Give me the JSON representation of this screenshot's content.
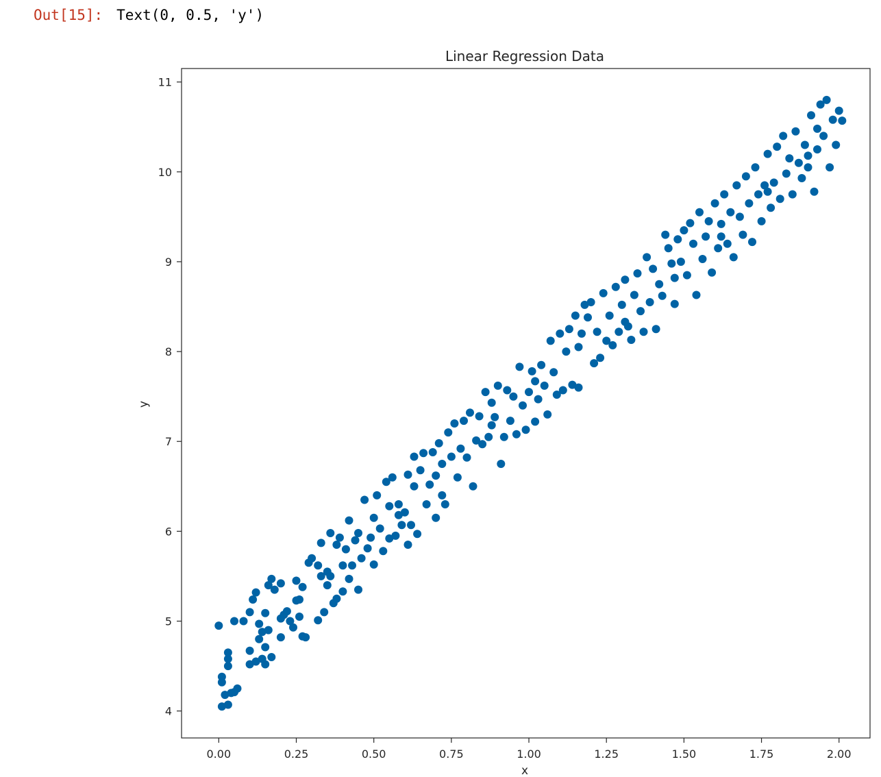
{
  "cell": {
    "prompt": "Out[15]:",
    "output_text": "Text(0, 0.5, 'y')"
  },
  "colors": {
    "prompt": "#c2361f",
    "marker": "#0063a5",
    "axes": "#262626"
  },
  "chart_data": {
    "type": "scatter",
    "title": "Linear Regression Data",
    "xlabel": "x",
    "ylabel": "y",
    "xlim": [
      -0.12,
      2.1
    ],
    "ylim": [
      3.7,
      11.15
    ],
    "xticks": [
      0.0,
      0.25,
      0.5,
      0.75,
      1.0,
      1.25,
      1.5,
      1.75,
      2.0
    ],
    "xtick_labels": [
      "0.00",
      "0.25",
      "0.50",
      "0.75",
      "1.00",
      "1.25",
      "1.50",
      "1.75",
      "2.00"
    ],
    "yticks": [
      4,
      5,
      6,
      7,
      8,
      9,
      10,
      11
    ],
    "ytick_labels": [
      "4",
      "5",
      "6",
      "7",
      "8",
      "9",
      "10",
      "11"
    ],
    "grid": false,
    "legend": false,
    "points": [
      [
        0.0,
        4.95
      ],
      [
        0.01,
        4.38
      ],
      [
        0.01,
        4.32
      ],
      [
        0.01,
        4.05
      ],
      [
        0.02,
        4.18
      ],
      [
        0.03,
        4.07
      ],
      [
        0.03,
        4.5
      ],
      [
        0.03,
        4.58
      ],
      [
        0.03,
        4.65
      ],
      [
        0.04,
        4.2
      ],
      [
        0.05,
        4.21
      ],
      [
        0.05,
        5.0
      ],
      [
        0.08,
        5.0
      ],
      [
        0.1,
        4.52
      ],
      [
        0.1,
        4.67
      ],
      [
        0.1,
        5.1
      ],
      [
        0.11,
        5.24
      ],
      [
        0.12,
        4.55
      ],
      [
        0.12,
        5.32
      ],
      [
        0.13,
        4.8
      ],
      [
        0.13,
        4.97
      ],
      [
        0.14,
        4.58
      ],
      [
        0.14,
        4.88
      ],
      [
        0.15,
        5.09
      ],
      [
        0.15,
        4.52
      ],
      [
        0.15,
        4.71
      ],
      [
        0.16,
        4.9
      ],
      [
        0.16,
        5.4
      ],
      [
        0.17,
        5.47
      ],
      [
        0.17,
        4.6
      ],
      [
        0.18,
        5.35
      ],
      [
        0.2,
        4.82
      ],
      [
        0.2,
        5.42
      ],
      [
        0.21,
        5.07
      ],
      [
        0.22,
        5.11
      ],
      [
        0.23,
        5.0
      ],
      [
        0.24,
        4.93
      ],
      [
        0.25,
        5.23
      ],
      [
        0.25,
        5.45
      ],
      [
        0.26,
        5.05
      ],
      [
        0.26,
        5.24
      ],
      [
        0.27,
        4.83
      ],
      [
        0.27,
        5.38
      ],
      [
        0.28,
        4.82
      ],
      [
        0.29,
        5.65
      ],
      [
        0.3,
        5.7
      ],
      [
        0.32,
        5.62
      ],
      [
        0.32,
        5.01
      ],
      [
        0.33,
        5.5
      ],
      [
        0.33,
        5.87
      ],
      [
        0.34,
        5.1
      ],
      [
        0.35,
        5.55
      ],
      [
        0.36,
        5.5
      ],
      [
        0.36,
        5.98
      ],
      [
        0.37,
        5.2
      ],
      [
        0.38,
        5.25
      ],
      [
        0.38,
        5.85
      ],
      [
        0.39,
        5.93
      ],
      [
        0.4,
        5.33
      ],
      [
        0.4,
        5.62
      ],
      [
        0.41,
        5.8
      ],
      [
        0.42,
        6.12
      ],
      [
        0.42,
        5.47
      ],
      [
        0.43,
        5.62
      ],
      [
        0.44,
        5.9
      ],
      [
        0.45,
        5.35
      ],
      [
        0.46,
        5.7
      ],
      [
        0.47,
        6.35
      ],
      [
        0.48,
        5.81
      ],
      [
        0.49,
        5.93
      ],
      [
        0.5,
        5.63
      ],
      [
        0.5,
        6.15
      ],
      [
        0.51,
        6.4
      ],
      [
        0.52,
        6.03
      ],
      [
        0.53,
        5.78
      ],
      [
        0.54,
        6.55
      ],
      [
        0.55,
        6.28
      ],
      [
        0.55,
        5.92
      ],
      [
        0.56,
        6.6
      ],
      [
        0.57,
        5.95
      ],
      [
        0.58,
        6.3
      ],
      [
        0.59,
        6.07
      ],
      [
        0.6,
        6.21
      ],
      [
        0.61,
        5.85
      ],
      [
        0.61,
        6.63
      ],
      [
        0.62,
        6.07
      ],
      [
        0.63,
        6.5
      ],
      [
        0.63,
        6.83
      ],
      [
        0.64,
        5.97
      ],
      [
        0.65,
        6.68
      ],
      [
        0.66,
        6.87
      ],
      [
        0.67,
        6.3
      ],
      [
        0.68,
        6.52
      ],
      [
        0.69,
        6.88
      ],
      [
        0.7,
        6.15
      ],
      [
        0.7,
        6.62
      ],
      [
        0.71,
        6.98
      ],
      [
        0.72,
        6.75
      ],
      [
        0.73,
        6.3
      ],
      [
        0.74,
        7.1
      ],
      [
        0.75,
        6.83
      ],
      [
        0.76,
        7.2
      ],
      [
        0.77,
        6.6
      ],
      [
        0.78,
        6.92
      ],
      [
        0.79,
        7.23
      ],
      [
        0.8,
        6.82
      ],
      [
        0.81,
        7.32
      ],
      [
        0.82,
        6.5
      ],
      [
        0.83,
        7.01
      ],
      [
        0.84,
        7.28
      ],
      [
        0.85,
        6.97
      ],
      [
        0.86,
        7.55
      ],
      [
        0.87,
        7.05
      ],
      [
        0.88,
        7.43
      ],
      [
        0.89,
        7.27
      ],
      [
        0.9,
        7.62
      ],
      [
        0.91,
        6.75
      ],
      [
        0.92,
        7.05
      ],
      [
        0.93,
        7.57
      ],
      [
        0.94,
        7.23
      ],
      [
        0.95,
        7.5
      ],
      [
        0.96,
        7.08
      ],
      [
        0.97,
        7.83
      ],
      [
        0.98,
        7.4
      ],
      [
        0.99,
        7.13
      ],
      [
        1.0,
        7.55
      ],
      [
        1.01,
        7.78
      ],
      [
        1.02,
        7.22
      ],
      [
        1.03,
        7.47
      ],
      [
        1.04,
        7.85
      ],
      [
        1.05,
        7.62
      ],
      [
        1.06,
        7.3
      ],
      [
        1.07,
        8.12
      ],
      [
        1.08,
        7.77
      ],
      [
        1.09,
        7.52
      ],
      [
        1.1,
        8.2
      ],
      [
        1.11,
        7.57
      ],
      [
        1.12,
        8.0
      ],
      [
        1.13,
        8.25
      ],
      [
        1.14,
        7.63
      ],
      [
        1.15,
        8.4
      ],
      [
        1.16,
        7.6
      ],
      [
        1.17,
        8.2
      ],
      [
        1.18,
        8.52
      ],
      [
        1.19,
        8.38
      ],
      [
        1.2,
        8.55
      ],
      [
        1.21,
        7.87
      ],
      [
        1.22,
        8.22
      ],
      [
        1.23,
        7.93
      ],
      [
        1.24,
        8.65
      ],
      [
        1.25,
        8.12
      ],
      [
        1.26,
        8.4
      ],
      [
        1.27,
        8.07
      ],
      [
        1.28,
        8.72
      ],
      [
        1.29,
        8.22
      ],
      [
        1.3,
        8.52
      ],
      [
        1.31,
        8.8
      ],
      [
        1.32,
        8.28
      ],
      [
        1.33,
        8.13
      ],
      [
        1.34,
        8.63
      ],
      [
        1.35,
        8.87
      ],
      [
        1.36,
        8.45
      ],
      [
        1.37,
        8.22
      ],
      [
        1.38,
        9.05
      ],
      [
        1.39,
        8.55
      ],
      [
        1.4,
        8.92
      ],
      [
        1.41,
        8.25
      ],
      [
        1.42,
        8.75
      ],
      [
        1.43,
        8.62
      ],
      [
        1.44,
        9.3
      ],
      [
        1.45,
        9.15
      ],
      [
        1.46,
        8.98
      ],
      [
        1.47,
        8.53
      ],
      [
        1.48,
        9.25
      ],
      [
        1.49,
        9.0
      ],
      [
        1.5,
        9.35
      ],
      [
        1.51,
        8.85
      ],
      [
        1.52,
        9.43
      ],
      [
        1.53,
        9.2
      ],
      [
        1.54,
        8.63
      ],
      [
        1.55,
        9.55
      ],
      [
        1.56,
        9.03
      ],
      [
        1.57,
        9.28
      ],
      [
        1.58,
        9.45
      ],
      [
        1.59,
        8.88
      ],
      [
        1.6,
        9.65
      ],
      [
        1.61,
        9.15
      ],
      [
        1.62,
        9.42
      ],
      [
        1.63,
        9.75
      ],
      [
        1.64,
        9.2
      ],
      [
        1.65,
        9.55
      ],
      [
        1.66,
        9.05
      ],
      [
        1.67,
        9.85
      ],
      [
        1.68,
        9.5
      ],
      [
        1.69,
        9.3
      ],
      [
        1.7,
        9.95
      ],
      [
        1.71,
        9.65
      ],
      [
        1.72,
        9.22
      ],
      [
        1.73,
        10.05
      ],
      [
        1.74,
        9.75
      ],
      [
        1.75,
        9.45
      ],
      [
        1.76,
        9.85
      ],
      [
        1.77,
        10.2
      ],
      [
        1.78,
        9.6
      ],
      [
        1.79,
        9.88
      ],
      [
        1.8,
        10.28
      ],
      [
        1.81,
        9.7
      ],
      [
        1.82,
        10.4
      ],
      [
        1.83,
        9.98
      ],
      [
        1.84,
        10.15
      ],
      [
        1.85,
        9.75
      ],
      [
        1.86,
        10.45
      ],
      [
        1.87,
        10.1
      ],
      [
        1.88,
        9.93
      ],
      [
        1.89,
        10.3
      ],
      [
        1.9,
        10.05
      ],
      [
        1.91,
        10.63
      ],
      [
        1.92,
        9.78
      ],
      [
        1.93,
        10.48
      ],
      [
        1.93,
        10.25
      ],
      [
        1.94,
        10.75
      ],
      [
        1.95,
        10.4
      ],
      [
        1.96,
        10.8
      ],
      [
        1.97,
        10.05
      ],
      [
        1.98,
        10.58
      ],
      [
        1.99,
        10.3
      ],
      [
        2.0,
        10.68
      ],
      [
        2.01,
        10.57
      ],
      [
        0.06,
        4.25
      ],
      [
        0.2,
        5.03
      ],
      [
        0.35,
        5.4
      ],
      [
        0.45,
        5.98
      ],
      [
        0.58,
        6.18
      ],
      [
        0.72,
        6.4
      ],
      [
        0.88,
        7.18
      ],
      [
        1.02,
        7.67
      ],
      [
        1.16,
        8.05
      ],
      [
        1.31,
        8.33
      ],
      [
        1.47,
        8.82
      ],
      [
        1.62,
        9.28
      ],
      [
        1.77,
        9.78
      ],
      [
        1.9,
        10.18
      ]
    ]
  }
}
